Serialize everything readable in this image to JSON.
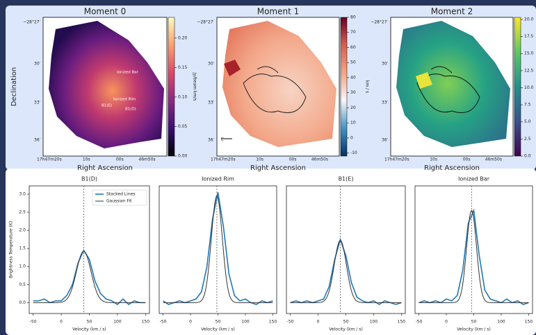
{
  "chart_data": [
    {
      "type": "image",
      "title": "Moment 0",
      "xlabel": "Right Ascension",
      "ylabel": "Declination",
      "xtick_labels": [
        "17h47m20s",
        "10s",
        "00s",
        "46m50s"
      ],
      "ytick_labels": [
        "−28°27′",
        "30′",
        "33′",
        "36′"
      ],
      "annotations": [
        "Ionized Bar",
        "Ionized Rim",
        "B1(E)",
        "B1(D)"
      ],
      "colormap": [
        "#000004",
        "#3b0f70",
        "#8c2981",
        "#de4968",
        "#fe9f6d",
        "#fcfdbf"
      ],
      "colorbar": {
        "label": "Jy/beam km/s",
        "lim": [
          0,
          0.235
        ],
        "ticks": [
          {
            "value": 0,
            "label": "0.00"
          },
          {
            "value": 0.05,
            "label": "0.05"
          },
          {
            "value": 0.1,
            "label": "0.10"
          },
          {
            "value": 0.15,
            "label": "0.15"
          },
          {
            "value": 0.2,
            "label": "0.20"
          }
        ]
      }
    },
    {
      "type": "image",
      "title": "Moment 1",
      "xlabel": "Right Ascension",
      "xtick_labels": [
        "17h47m20s",
        "10s",
        "00s",
        "46m50s"
      ],
      "ytick_labels": [
        "−28°27′",
        "30′",
        "33′",
        "36′"
      ],
      "annotations": [
        "E"
      ],
      "colormap": [
        "#053061",
        "#4393c3",
        "#f7f7f7",
        "#f4a582",
        "#d6604d",
        "#67001f"
      ],
      "colorbar": {
        "label": "km / s",
        "lim": [
          -12,
          80
        ],
        "ticks": [
          -10,
          0,
          10,
          20,
          30,
          40,
          50,
          60,
          70,
          80
        ]
      }
    },
    {
      "type": "image",
      "title": "Moment 2",
      "xlabel": "Right Ascension",
      "xtick_labels": [
        "17h47m20s",
        "10s",
        "00s",
        "46m50s"
      ],
      "ytick_labels": [
        "−28°27′",
        "30′",
        "33′",
        "36′"
      ],
      "colormap": [
        "#440154",
        "#3b528b",
        "#21918c",
        "#5ec962",
        "#fde725"
      ],
      "colorbar": {
        "lim": [
          0,
          20.3
        ],
        "ticks": [
          {
            "value": 0,
            "label": "0.0"
          },
          {
            "value": 2.5,
            "label": "2.5"
          },
          {
            "value": 5,
            "label": "5.0"
          },
          {
            "value": 7.5,
            "label": "7.5"
          },
          {
            "value": 10,
            "label": "10.0"
          },
          {
            "value": 12.5,
            "label": "12.5"
          },
          {
            "value": 15,
            "label": "15.0"
          },
          {
            "value": 17.5,
            "label": "17.5"
          },
          {
            "value": 20,
            "label": "20.0"
          }
        ]
      }
    },
    {
      "type": "line",
      "title": "B1(D)",
      "xlabel": "Velocity (km / s)",
      "ylabel": "Brightness Temperature (K)",
      "xlim": [
        -57,
        157
      ],
      "ylim": [
        -0.3,
        3.23
      ],
      "xticks": [
        -50,
        0,
        50,
        100,
        150
      ],
      "yticks": [
        {
          "value": 0,
          "label": "0.0"
        },
        {
          "value": 0.5,
          "label": "0.5"
        },
        {
          "value": 1,
          "label": "1.0"
        },
        {
          "value": 1.5,
          "label": "1.5"
        },
        {
          "value": 2,
          "label": "2.0"
        },
        {
          "value": 2.5,
          "label": "2.5"
        },
        {
          "value": 3,
          "label": "3.0"
        }
      ],
      "x": [
        -50,
        -40,
        -30,
        -20,
        -10,
        0,
        10,
        20,
        30,
        40,
        50,
        60,
        70,
        80,
        90,
        100,
        110,
        120,
        130,
        140,
        150
      ],
      "series": [
        {
          "name": "Stacked Lines",
          "color": "#1f77b4",
          "values": [
            0.05,
            0.05,
            0.1,
            0.0,
            0.05,
            0.05,
            0.2,
            0.5,
            1.1,
            1.45,
            1.2,
            0.6,
            0.25,
            0.1,
            0.05,
            -0.05,
            0.1,
            -0.05,
            0.05,
            0.0,
            0.0
          ]
        }
      ],
      "fit": {
        "name": "Gaussian Fit",
        "color": "#333333",
        "amplitude": 1.42,
        "center": 40,
        "sigma": 13
      },
      "vline": 40,
      "legend": "upper right"
    },
    {
      "type": "line",
      "title": "Ionized Rim",
      "xlabel": "Velocity (km / s)",
      "xlim": [
        -57,
        157
      ],
      "ylim": [
        -0.3,
        3.23
      ],
      "xticks": [
        -50,
        0,
        50,
        100,
        150
      ],
      "x": [
        -50,
        -40,
        -30,
        -20,
        -10,
        0,
        10,
        20,
        30,
        40,
        50,
        60,
        70,
        80,
        90,
        100,
        110,
        120,
        130,
        140,
        150
      ],
      "series": [
        {
          "color": "#1f77b4",
          "values": [
            0.05,
            -0.05,
            0.0,
            0.05,
            0.0,
            0.05,
            0.1,
            0.3,
            1.0,
            2.3,
            3.05,
            2.1,
            0.8,
            0.2,
            0.05,
            0.1,
            0.0,
            -0.05,
            0.05,
            0.0,
            0.05
          ]
        }
      ],
      "fit": {
        "color": "#333333",
        "amplitude": 2.95,
        "center": 48,
        "sigma": 10
      },
      "vline": 48
    },
    {
      "type": "line",
      "title": "B1(E)",
      "xlabel": "Velocity (km / s)",
      "xlim": [
        -57,
        157
      ],
      "ylim": [
        -0.3,
        3.23
      ],
      "xticks": [
        -50,
        0,
        50,
        100,
        150
      ],
      "x": [
        -50,
        -40,
        -30,
        -20,
        -10,
        0,
        10,
        20,
        30,
        40,
        50,
        60,
        70,
        80,
        90,
        100,
        110,
        120,
        130,
        140,
        150
      ],
      "series": [
        {
          "color": "#1f77b4",
          "values": [
            0.0,
            0.05,
            0.0,
            0.05,
            0.0,
            0.05,
            0.1,
            0.45,
            1.2,
            1.75,
            1.3,
            0.55,
            0.15,
            0.05,
            0.0,
            0.05,
            -0.05,
            0.05,
            0.0,
            -0.05,
            0.0
          ]
        }
      ],
      "fit": {
        "color": "#333333",
        "amplitude": 1.72,
        "center": 40,
        "sigma": 11
      },
      "vline": 40
    },
    {
      "type": "line",
      "title": "Ionized Bar",
      "xlabel": "Velocity (km / s)",
      "xlim": [
        -57,
        157
      ],
      "ylim": [
        -0.3,
        3.23
      ],
      "xticks": [
        -50,
        0,
        50,
        100,
        150
      ],
      "x": [
        -50,
        -40,
        -30,
        -20,
        -10,
        0,
        10,
        20,
        30,
        40,
        50,
        60,
        70,
        80,
        90,
        100,
        110,
        120,
        130,
        140,
        150
      ],
      "series": [
        {
          "color": "#1f77b4",
          "values": [
            0.0,
            0.05,
            0.0,
            0.05,
            0.0,
            0.1,
            0.05,
            0.2,
            0.9,
            2.2,
            2.55,
            1.3,
            0.35,
            0.1,
            0.05,
            0.0,
            0.1,
            0.0,
            0.05,
            -0.05,
            0.0
          ]
        }
      ],
      "fit": {
        "color": "#333333",
        "amplitude": 2.55,
        "center": 46,
        "sigma": 9
      },
      "vline": 46
    }
  ]
}
